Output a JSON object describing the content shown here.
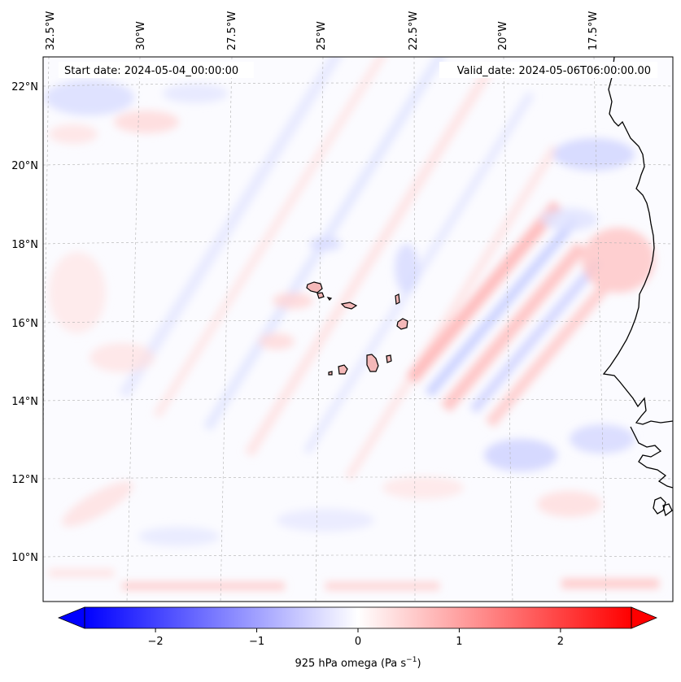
{
  "map": {
    "start_date": "Start date: 2024-05-04_00:00:00",
    "valid_date": "Valid_date: 2024-05-06T06:00:00.00",
    "lon_labels": [
      "32.5°W",
      "30°W",
      "27.5°W",
      "25°W",
      "22.5°W",
      "20°W",
      "17.5°W"
    ],
    "lat_labels": [
      "22°N",
      "20°N",
      "18°N",
      "16°N",
      "14°N",
      "12°N",
      "10°N"
    ],
    "coastline_color": "#000000",
    "land_fill_color": "#f4b8b8",
    "grid_color": "#b0b0b0"
  },
  "colorbar": {
    "label_prefix": "925 hPa omega (Pa s",
    "label_exp": "−1",
    "label_suffix": ")",
    "ticks": [
      "−2",
      "−1",
      "0",
      "1",
      "2"
    ],
    "min_value": -2.7,
    "max_value": 2.7,
    "low_color": "#0000ff",
    "high_color": "#ff0000"
  }
}
